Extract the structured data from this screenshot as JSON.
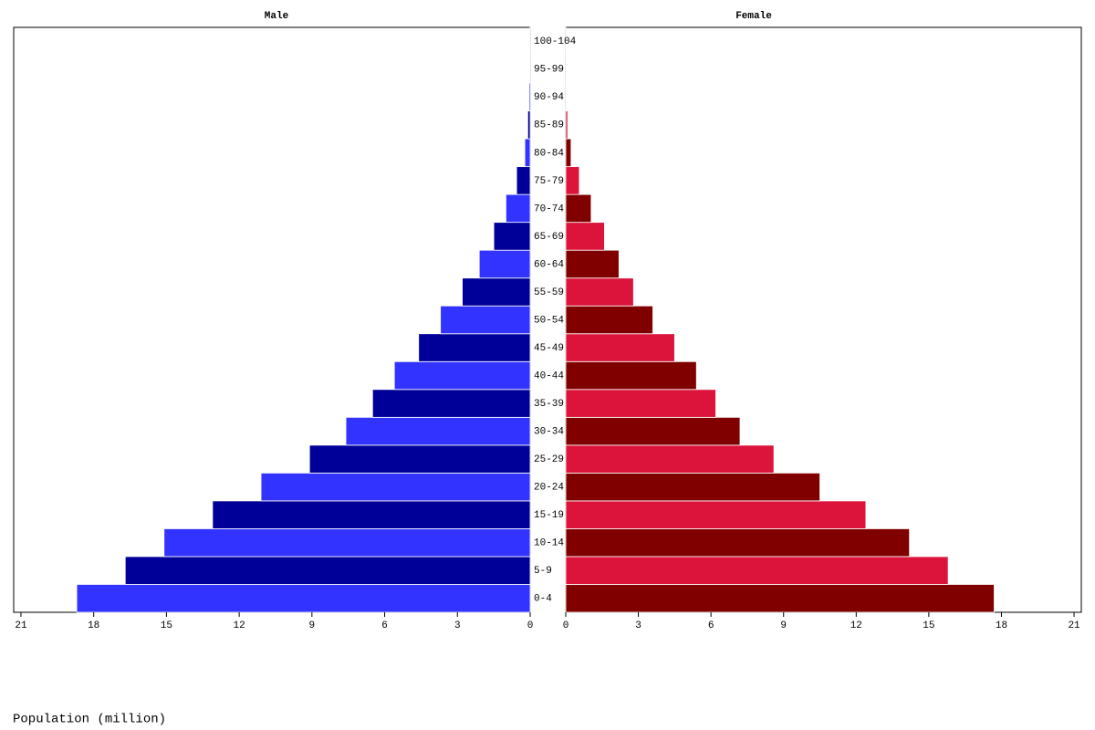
{
  "chart_data": {
    "type": "pyramid",
    "xlabel": "Population (million)",
    "categories": [
      "0-4",
      "5-9",
      "10-14",
      "15-19",
      "20-24",
      "25-29",
      "30-34",
      "35-39",
      "40-44",
      "45-49",
      "50-54",
      "55-59",
      "60-64",
      "65-69",
      "70-74",
      "75-79",
      "80-84",
      "85-89",
      "90-94",
      "95-99",
      "100-104"
    ],
    "series": [
      {
        "name": "Male",
        "colors": [
          "#3333ff",
          "#000099"
        ],
        "values": [
          18.7,
          16.7,
          15.1,
          13.1,
          11.1,
          9.1,
          7.6,
          6.5,
          5.6,
          4.6,
          3.7,
          2.8,
          2.1,
          1.5,
          1.0,
          0.56,
          0.22,
          0.1,
          0.05,
          0.03,
          0.01
        ]
      },
      {
        "name": "Female",
        "colors": [
          "#800000",
          "#dc143c"
        ],
        "values": [
          17.7,
          15.8,
          14.2,
          12.4,
          10.5,
          8.6,
          7.2,
          6.2,
          5.4,
          4.5,
          3.6,
          2.8,
          2.2,
          1.6,
          1.05,
          0.56,
          0.22,
          0.08,
          0.03,
          0.01,
          0.005
        ]
      }
    ],
    "xlim": [
      0,
      21.3
    ],
    "xticks": [
      0,
      3,
      6,
      9,
      12,
      15,
      18,
      21
    ]
  }
}
